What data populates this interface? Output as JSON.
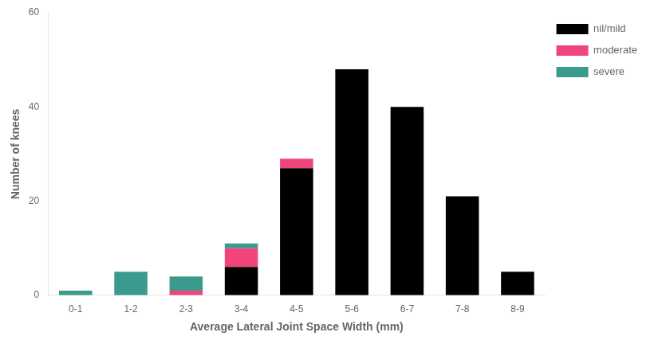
{
  "chart_data": {
    "type": "bar",
    "stacked": true,
    "categories": [
      "0-1",
      "1-2",
      "2-3",
      "3-4",
      "4-5",
      "5-6",
      "6-7",
      "7-8",
      "8-9"
    ],
    "series": [
      {
        "name": "nil/mild",
        "color": "#000000",
        "values": [
          0,
          0,
          0,
          6,
          27,
          48,
          40,
          21,
          5
        ]
      },
      {
        "name": "moderate",
        "color": "#F0457A",
        "values": [
          0,
          0,
          1,
          4,
          2,
          0,
          0,
          0,
          0
        ]
      },
      {
        "name": "severe",
        "color": "#3A9A8E",
        "values": [
          1,
          5,
          3,
          1,
          0,
          0,
          0,
          0,
          0
        ]
      }
    ],
    "xlabel": "Average Lateral Joint Space Width (mm)",
    "ylabel": "Number of knees",
    "ylim": [
      0,
      60
    ],
    "yticks": [
      0,
      20,
      40,
      60
    ],
    "grid": false,
    "legend": "right"
  }
}
